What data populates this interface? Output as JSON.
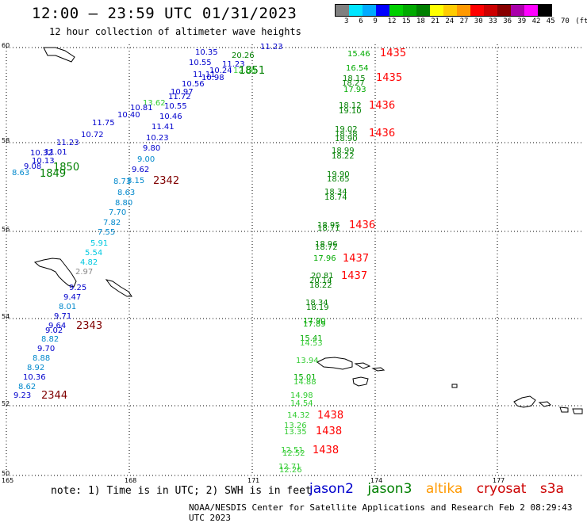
{
  "header": {
    "title": "12:00 – 23:59 UTC 01/31/2023",
    "subtitle": "12 hour collection of altimeter wave heights"
  },
  "colorbar": {
    "colors": [
      "#808080",
      "#00e5ff",
      "#00aaff",
      "#0000ff",
      "#00d000",
      "#00aa00",
      "#008000",
      "#ffff00",
      "#ffcc00",
      "#ff9900",
      "#ff0000",
      "#cc0000",
      "#880000",
      "#aa00aa",
      "#ff00ff",
      "#000000"
    ],
    "labels": [
      "3",
      "6",
      "9",
      "12",
      "15",
      "18",
      "21",
      "24",
      "27",
      "30",
      "33",
      "36",
      "39",
      "42",
      "45",
      "70",
      "(ft)"
    ]
  },
  "axes": {
    "lat_labels": [
      "60",
      "58",
      "56",
      "54",
      "52",
      "50"
    ],
    "lon_labels": [
      "165",
      "168",
      "171",
      "174",
      "177"
    ]
  },
  "colors": {
    "jason2": "#0000cc",
    "jason3": "#008000",
    "altika": "#ff9900",
    "cryosat": "#cc0000",
    "s3a": "#cc0000"
  },
  "track_times": [
    "1851",
    "1850",
    "1849",
    "2342",
    "2343",
    "2344",
    "1435",
    "1435",
    "1436",
    "1436",
    "1436",
    "1437",
    "1437",
    "1438",
    "1438",
    "1438"
  ],
  "readings": [
    "11.23",
    "10.35",
    "10.55",
    "11.11",
    "10.24",
    "11.23",
    "10.98",
    "10.56",
    "10.97",
    "11.72",
    "13.62",
    "10.81",
    "10.55",
    "10.46",
    "10.40",
    "11.41",
    "11.75",
    "10.72",
    "10.23",
    "11.23",
    "9.80",
    "11.01",
    "10.32",
    "9.00",
    "10.13",
    "9.08",
    "8.63",
    "9.62",
    "8.15",
    "8.73",
    "8.63",
    "8.80",
    "7.70",
    "7.82",
    "7.55",
    "5.91",
    "5.54",
    "4.82",
    "2.97",
    "9.25",
    "9.47",
    "8.01",
    "9.71",
    "9.64",
    "9.02",
    "8.82",
    "9.70",
    "8.88",
    "8.92",
    "10.36",
    "8.62",
    "9.23",
    "20.26",
    "12.06",
    "15.46",
    "16.54",
    "18.15",
    "18.27",
    "17.93",
    "18.12",
    "19.10",
    "19.02",
    "18.38",
    "18.90",
    "18.99",
    "18.22",
    "19.90",
    "18.65",
    "18.34",
    "18.74",
    "18.95",
    "18.71",
    "18.96",
    "18.72",
    "17.96",
    "20.81",
    "20.14",
    "18.22",
    "18.34",
    "18.19",
    "17.90",
    "17.89",
    "15.41",
    "14.53",
    "13.94",
    "15.01",
    "14.88",
    "14.98",
    "14.54",
    "14.32",
    "13.26",
    "13.35",
    "12.51",
    "12.52",
    "12.71",
    "12.26"
  ],
  "legend": {
    "jason2": "jason2",
    "jason3": "jason3",
    "altika": "altika",
    "cryosat": "cryosat",
    "s3a": "s3a"
  },
  "note": "note: 1) Time is in UTC; 2) SWH is in feet",
  "footer": "NOAA/NESDIS Center for Satellite Applications and Research   Feb  2 08:29:43 UTC 2023"
}
